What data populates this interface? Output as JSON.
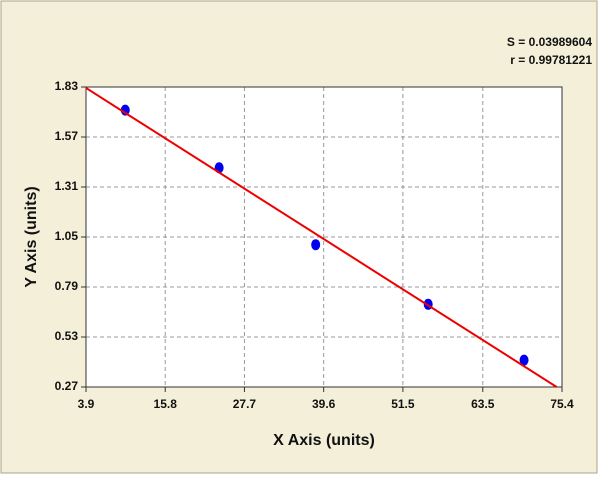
{
  "chart_data": {
    "type": "scatter",
    "x_label": "X Axis (units)",
    "y_label": "Y Axis (units)",
    "annotations": [
      "S = 0.03989604",
      "r = 0.99781221"
    ],
    "series": [
      {
        "color": "#0000ee",
        "x": [
          9.8,
          23.9,
          38.4,
          55.3,
          69.7
        ],
        "values": [
          1.71,
          1.41,
          1.01,
          0.7,
          0.41
        ]
      },
      {
        "type": "line",
        "color": "#ee0000",
        "x": [
          3.9,
          74.6
        ],
        "values": [
          1.825,
          0.27
        ]
      }
    ],
    "xlim": [
      3.9,
      75.4
    ],
    "xticks": [
      3.9,
      15.8,
      27.7,
      39.6,
      51.5,
      63.5,
      75.4
    ],
    "ylim": [
      0.27,
      1.83
    ],
    "yticks": [
      0.27,
      0.53,
      0.79,
      1.05,
      1.31,
      1.57,
      1.83
    ],
    "grid": true,
    "background": "#f3efd9"
  }
}
